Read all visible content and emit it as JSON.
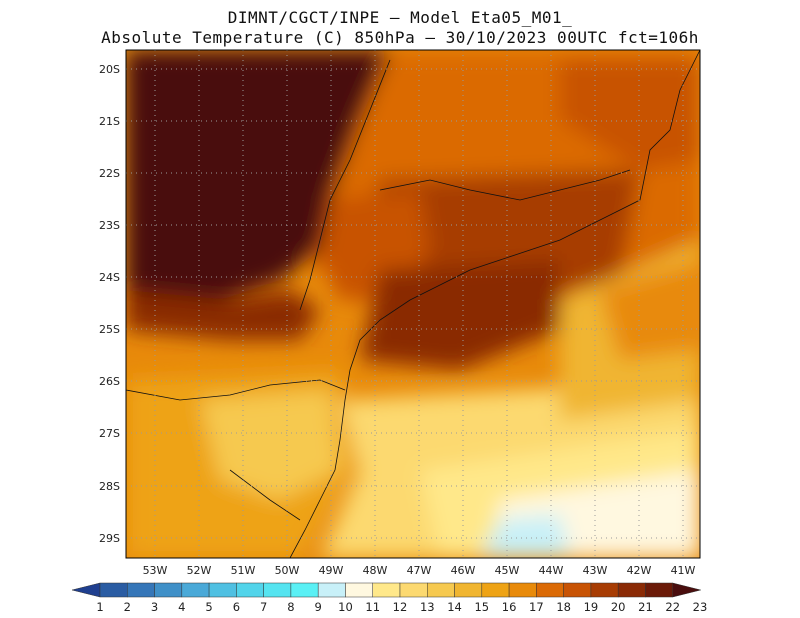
{
  "title_line1": "DIMNT/CGCT/INPE –  Model Eta05_M01_",
  "title_line2": "Absolute Temperature (C) 850hPa –  30/10/2023 00UTC fct=106h",
  "lat_labels": [
    "20S",
    "21S",
    "22S",
    "23S",
    "24S",
    "25S",
    "26S",
    "27S",
    "28S",
    "29S"
  ],
  "lon_labels": [
    "53W",
    "52W",
    "51W",
    "50W",
    "49W",
    "48W",
    "47W",
    "46W",
    "45W",
    "44W",
    "43W",
    "42W",
    "41W"
  ],
  "colorbar": {
    "labels": [
      "1",
      "2",
      "3",
      "4",
      "5",
      "6",
      "7",
      "8",
      "9",
      "10",
      "11",
      "12",
      "13",
      "14",
      "15",
      "16",
      "17",
      "18",
      "19",
      "20",
      "21",
      "22",
      "23"
    ],
    "colors": [
      "#1f3f8f",
      "#2a5ca3",
      "#3576b8",
      "#3f90c8",
      "#4aa9d8",
      "#4fc0e2",
      "#52d4ea",
      "#55e4f0",
      "#5af0f5",
      "#c8f0f8",
      "#fff8e0",
      "#ffe88a",
      "#fcd970",
      "#f6c94f",
      "#f0b530",
      "#eea315",
      "#e88a0a",
      "#db6a05",
      "#c85304",
      "#a73c03",
      "#8a2a05",
      "#6b1a08",
      "#4a0e0e"
    ]
  },
  "chart_data": {
    "type": "heatmap",
    "variable": "Absolute Temperature (C) 850hPa",
    "model": "Eta05_M01_",
    "run": "30/10/2023 00UTC",
    "forecast_hour": "fct=106h",
    "lon_range": [
      -53.6,
      -40.6
    ],
    "lat_range": [
      -29.4,
      -19.9
    ],
    "color_levels": [
      1,
      2,
      3,
      4,
      5,
      6,
      7,
      8,
      9,
      10,
      11,
      12,
      13,
      14,
      15,
      16,
      17,
      18,
      19,
      20,
      21,
      22,
      23
    ],
    "field_zones": [
      {
        "region": "northwest interior (20-24S, 53-49W)",
        "value": 23
      },
      {
        "region": "east coast inland 21-25S",
        "value": 21
      },
      {
        "region": "southern plateau 26-29S, 52-49W",
        "value": 16
      },
      {
        "region": "offshore southeast 28-29.4S, 46-43W",
        "value": 11
      },
      {
        "region": "northeast coast 20-22S",
        "value": 20
      }
    ]
  }
}
